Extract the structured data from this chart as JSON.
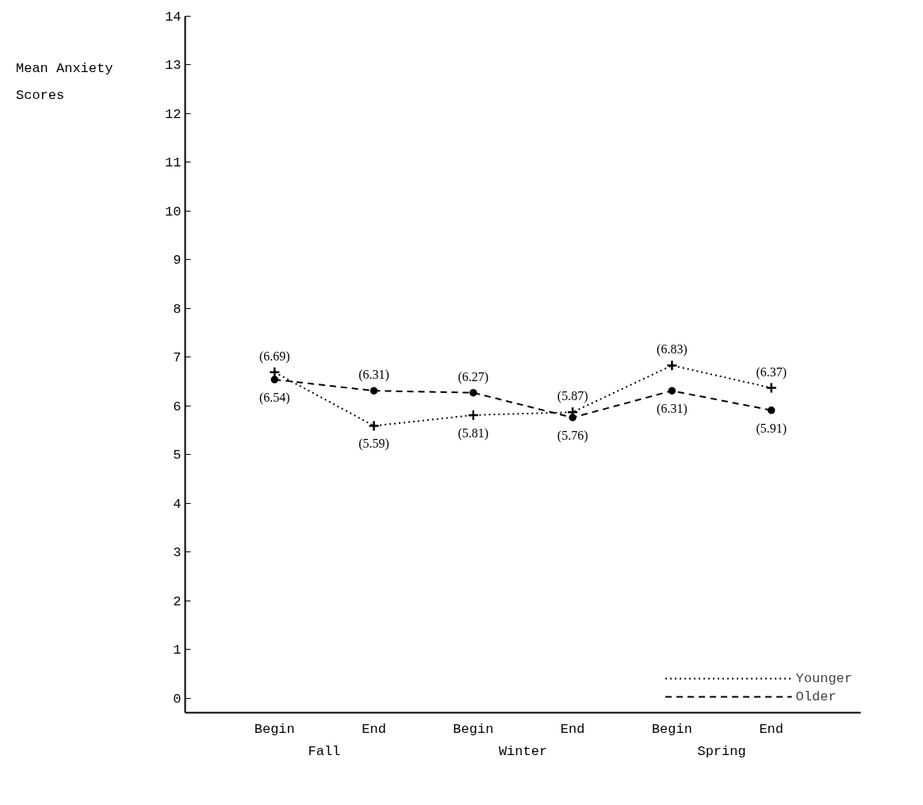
{
  "chart_data": {
    "type": "line",
    "ylabel": "Mean Anxiety Scores",
    "categories": [
      "Begin",
      "End",
      "Begin",
      "End",
      "Begin",
      "End"
    ],
    "ylim": [
      -0.3,
      14
    ],
    "yticks": [
      0,
      1,
      2,
      3,
      4,
      5,
      6,
      7,
      8,
      9,
      10,
      11,
      12,
      13,
      14
    ],
    "annotations": [
      "Fall",
      "Winter",
      "Spring"
    ],
    "grid": false,
    "legend": "bottom right",
    "series": [
      {
        "name": "Younger",
        "color": "#000000",
        "marker": "cross",
        "line_style": "dotted",
        "values": [
          6.69,
          5.59,
          5.81,
          5.87,
          6.83,
          6.37
        ],
        "value_labels": [
          "(6.69)",
          "(5.59)",
          "(5.81)",
          "(5.87)",
          "(6.83)",
          "(6.37)"
        ]
      },
      {
        "name": "Older",
        "color": "#000000",
        "marker": "circle",
        "line_style": "dashed",
        "values": [
          6.54,
          6.31,
          6.27,
          5.76,
          6.31,
          5.91
        ],
        "value_labels": [
          "(6.54)",
          "(6.31)",
          "(6.27)",
          "(5.76)",
          "(6.31)",
          "(5.91)"
        ]
      }
    ]
  }
}
